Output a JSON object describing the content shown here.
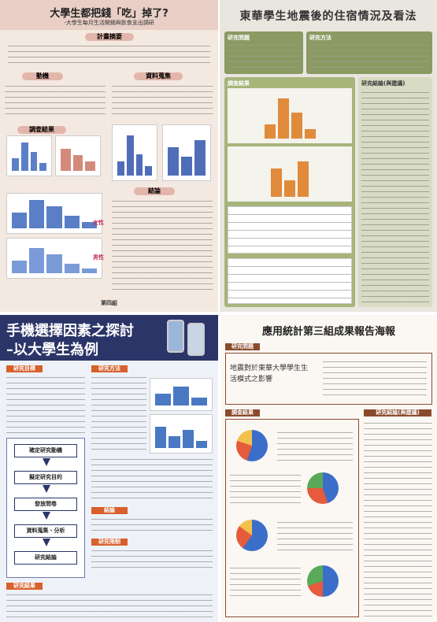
{
  "posters": [
    {
      "title": "大學生都把錢「吃」掉了?",
      "subtitle": "-大學生每月生活開銷與飲食支出調研",
      "sections": [
        "計畫摘要",
        "動機",
        "資料蒐集",
        "調查結果",
        "結論"
      ],
      "labels": [
        "女性",
        "男性"
      ],
      "footer": "第四組"
    },
    {
      "title": "東華學生地震後的住宿情況及看法",
      "sections": [
        "研究問題",
        "研究方法",
        "調查結果",
        "研究結論(與建議)"
      ]
    },
    {
      "title": [
        "手機選擇因素之探討",
        "–以大學生為例"
      ],
      "sections": [
        "研究目標",
        "研究方法",
        "結論",
        "研究限制",
        "研究結果"
      ],
      "flow": [
        "確定研究動機",
        "擬定研究目的",
        "發放問卷",
        "資料蒐集、分析",
        "研究結論"
      ]
    },
    {
      "title": "應用統計第三組成果報告海報",
      "sections": [
        "研究問題",
        "調查結果",
        "研究結論(與建議)"
      ],
      "question": "地震對於東華大學學生生活模式之影響"
    }
  ]
}
